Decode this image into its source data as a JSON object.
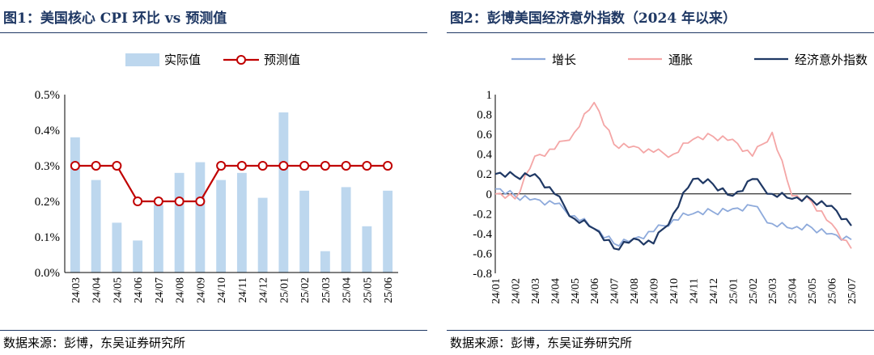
{
  "left_panel": {
    "title": "图1：美国核心 CPI 环比 vs 预测值",
    "source": "数据来源：彭博，东吴证券研究所"
  },
  "right_panel": {
    "title": "图2：彭博美国经济意外指数（2024 年以来）",
    "source": "数据来源：彭博，东吴证券研究所"
  },
  "chart_data": [
    {
      "type": "bar+line",
      "categories": [
        "24/03",
        "24/04",
        "24/05",
        "24/06",
        "24/07",
        "24/08",
        "24/09",
        "24/10",
        "24/11",
        "24/12",
        "25/01",
        "25/02",
        "25/03",
        "25/04",
        "25/05",
        "25/06"
      ],
      "y_ticks": [
        "0.0%",
        "0.1%",
        "0.2%",
        "0.3%",
        "0.4%",
        "0.5%"
      ],
      "ylim": [
        0,
        0.5
      ],
      "series": [
        {
          "name": "实际值",
          "kind": "bar",
          "color": "#bdd7ee",
          "values": [
            0.38,
            0.26,
            0.14,
            0.09,
            0.19,
            0.28,
            0.31,
            0.26,
            0.28,
            0.21,
            0.45,
            0.23,
            0.06,
            0.24,
            0.13,
            0.23
          ]
        },
        {
          "name": "预测值",
          "kind": "line",
          "color": "#c00000",
          "values": [
            0.3,
            0.3,
            0.3,
            0.2,
            0.2,
            0.2,
            0.2,
            0.3,
            0.3,
            0.3,
            0.3,
            0.3,
            0.3,
            0.3,
            0.3,
            0.3
          ]
        }
      ],
      "legend_position": "top"
    },
    {
      "type": "line",
      "categories": [
        "24/01",
        "24/02",
        "24/03",
        "24/04",
        "24/05",
        "24/06",
        "24/07",
        "24/08",
        "24/09",
        "24/10",
        "24/11",
        "24/12",
        "25/01",
        "25/02",
        "25/03",
        "25/04",
        "25/05",
        "25/06",
        "25/07"
      ],
      "y_ticks": [
        "-0.8",
        "-0.6",
        "-0.4",
        "-0.2",
        "0",
        "0.2",
        "0.4",
        "0.6",
        "0.8",
        "1"
      ],
      "ylim": [
        -0.8,
        1.0
      ],
      "series": [
        {
          "name": "增长",
          "color": "#8eaadb",
          "values": [
            0.05,
            -0.02,
            -0.05,
            -0.1,
            -0.22,
            -0.35,
            -0.5,
            -0.45,
            -0.38,
            -0.26,
            -0.2,
            -0.18,
            -0.15,
            -0.12,
            -0.3,
            -0.35,
            -0.34,
            -0.4,
            -0.46
          ]
        },
        {
          "name": "通胀",
          "color": "#f4a6a6",
          "values": [
            0.0,
            -0.05,
            0.38,
            0.45,
            0.62,
            0.92,
            0.5,
            0.48,
            0.42,
            0.4,
            0.55,
            0.58,
            0.55,
            0.38,
            0.62,
            -0.02,
            -0.08,
            -0.3,
            -0.55
          ]
        },
        {
          "name": "经济意外指数",
          "color": "#1f3864",
          "values": [
            0.2,
            0.18,
            0.2,
            0.0,
            -0.25,
            -0.35,
            -0.55,
            -0.45,
            -0.5,
            -0.2,
            0.15,
            0.1,
            -0.02,
            0.15,
            0.0,
            -0.05,
            -0.06,
            -0.12,
            -0.32
          ]
        }
      ],
      "legend_position": "top"
    }
  ]
}
